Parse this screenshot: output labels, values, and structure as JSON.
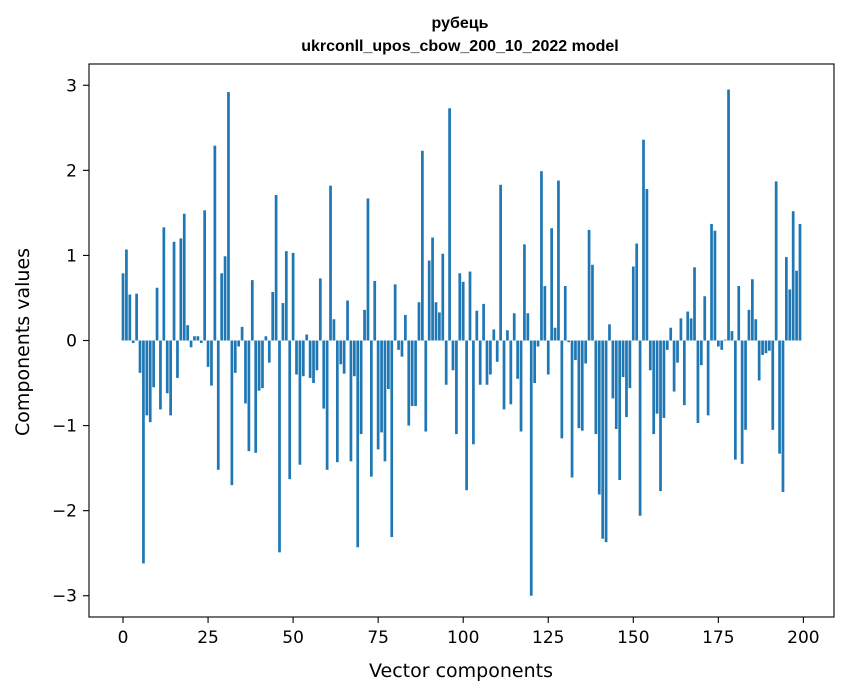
{
  "chart_data": {
    "type": "bar",
    "title": "рубець",
    "subtitle": "ukrconll_upos_cbow_200_10_2022 model",
    "xlabel": "Vector components",
    "ylabel": "Components values",
    "xlim": [
      -10,
      209
    ],
    "ylim": [
      -3.25,
      3.25
    ],
    "xticks": [
      0,
      25,
      50,
      75,
      100,
      125,
      150,
      175,
      200
    ],
    "yticks": [
      -3,
      -2,
      -1,
      0,
      1,
      2,
      3
    ],
    "xtick_labels": [
      "0",
      "25",
      "50",
      "75",
      "100",
      "125",
      "150",
      "175",
      "200"
    ],
    "ytick_labels": [
      "−3",
      "−2",
      "−1",
      "0",
      "1",
      "2",
      "3"
    ],
    "grid": false,
    "bar_color": "#1f77b4",
    "x": [
      0,
      1,
      2,
      3,
      4,
      5,
      6,
      7,
      8,
      9,
      10,
      11,
      12,
      13,
      14,
      15,
      16,
      17,
      18,
      19,
      20,
      21,
      22,
      23,
      24,
      25,
      26,
      27,
      28,
      29,
      30,
      31,
      32,
      33,
      34,
      35,
      36,
      37,
      38,
      39,
      40,
      41,
      42,
      43,
      44,
      45,
      46,
      47,
      48,
      49,
      50,
      51,
      52,
      53,
      54,
      55,
      56,
      57,
      58,
      59,
      60,
      61,
      62,
      63,
      64,
      65,
      66,
      67,
      68,
      69,
      70,
      71,
      72,
      73,
      74,
      75,
      76,
      77,
      78,
      79,
      80,
      81,
      82,
      83,
      84,
      85,
      86,
      87,
      88,
      89,
      90,
      91,
      92,
      93,
      94,
      95,
      96,
      97,
      98,
      99,
      100,
      101,
      102,
      103,
      104,
      105,
      106,
      107,
      108,
      109,
      110,
      111,
      112,
      113,
      114,
      115,
      116,
      117,
      118,
      119,
      120,
      121,
      122,
      123,
      124,
      125,
      126,
      127,
      128,
      129,
      130,
      131,
      132,
      133,
      134,
      135,
      136,
      137,
      138,
      139,
      140,
      141,
      142,
      143,
      144,
      145,
      146,
      147,
      148,
      149,
      150,
      151,
      152,
      153,
      154,
      155,
      156,
      157,
      158,
      159,
      160,
      161,
      162,
      163,
      164,
      165,
      166,
      167,
      168,
      169,
      170,
      171,
      172,
      173,
      174,
      175,
      176,
      177,
      178,
      179,
      180,
      181,
      182,
      183,
      184,
      185,
      186,
      187,
      188,
      189,
      190,
      191,
      192,
      193,
      194,
      195,
      196,
      197,
      198,
      199
    ],
    "values": [
      0.79,
      1.07,
      0.54,
      -0.03,
      0.55,
      -0.38,
      -2.62,
      -0.88,
      -0.96,
      -0.55,
      0.62,
      -0.81,
      1.33,
      -0.62,
      -0.88,
      1.16,
      -0.44,
      1.2,
      1.49,
      0.18,
      -0.08,
      0.05,
      0.05,
      -0.03,
      1.53,
      -0.31,
      -0.53,
      2.29,
      -1.52,
      0.79,
      0.99,
      2.92,
      -1.7,
      -0.38,
      -0.07,
      0.16,
      -0.74,
      -1.3,
      0.71,
      -1.32,
      -0.59,
      -0.56,
      0.05,
      -0.26,
      0.57,
      1.71,
      -2.49,
      0.44,
      1.05,
      -1.63,
      1.03,
      -0.4,
      -1.46,
      -0.42,
      0.07,
      -0.44,
      -0.5,
      -0.35,
      0.73,
      -0.8,
      -1.52,
      1.82,
      0.25,
      -1.43,
      -0.28,
      -0.39,
      0.47,
      -1.42,
      -0.42,
      -2.43,
      -1.1,
      0.36,
      1.67,
      -1.6,
      0.7,
      -1.28,
      -1.08,
      -1.42,
      -0.57,
      -2.31,
      0.66,
      -0.11,
      -0.19,
      0.3,
      -1.0,
      -0.77,
      -0.77,
      0.45,
      2.23,
      -1.07,
      0.94,
      1.21,
      0.45,
      0.33,
      1.02,
      -0.52,
      2.73,
      -0.35,
      -1.1,
      0.79,
      0.69,
      -1.76,
      0.81,
      -1.22,
      0.35,
      -0.52,
      0.43,
      -0.52,
      -0.4,
      0.13,
      -0.25,
      1.83,
      -0.81,
      0.12,
      -0.75,
      0.32,
      -0.45,
      -1.07,
      1.13,
      0.32,
      -3.0,
      -0.5,
      -0.07,
      1.99,
      0.64,
      -0.4,
      1.32,
      0.15,
      1.88,
      -1.15,
      0.64,
      -0.02,
      -1.61,
      -0.23,
      -1.03,
      -1.06,
      -0.27,
      1.3,
      0.89,
      -1.1,
      -1.81,
      -2.33,
      -2.37,
      0.19,
      -0.68,
      -1.04,
      -1.64,
      -0.43,
      -0.9,
      -0.56,
      0.87,
      1.14,
      -2.06,
      2.36,
      1.78,
      -0.35,
      -1.1,
      -0.86,
      -1.77,
      -0.91,
      -0.11,
      0.15,
      -0.6,
      -0.26,
      0.26,
      -0.76,
      0.34,
      0.26,
      0.86,
      -0.97,
      -0.29,
      0.52,
      -0.88,
      1.37,
      1.29,
      -0.07,
      -0.11,
      0.01,
      2.95,
      0.11,
      -1.4,
      0.64,
      -1.45,
      -1.05,
      0.36,
      0.72,
      0.25,
      -0.47,
      -0.17,
      -0.15,
      -0.12,
      -1.05,
      1.87,
      -1.33,
      -1.78,
      0.98,
      0.6,
      1.52,
      0.82,
      1.37
    ]
  }
}
